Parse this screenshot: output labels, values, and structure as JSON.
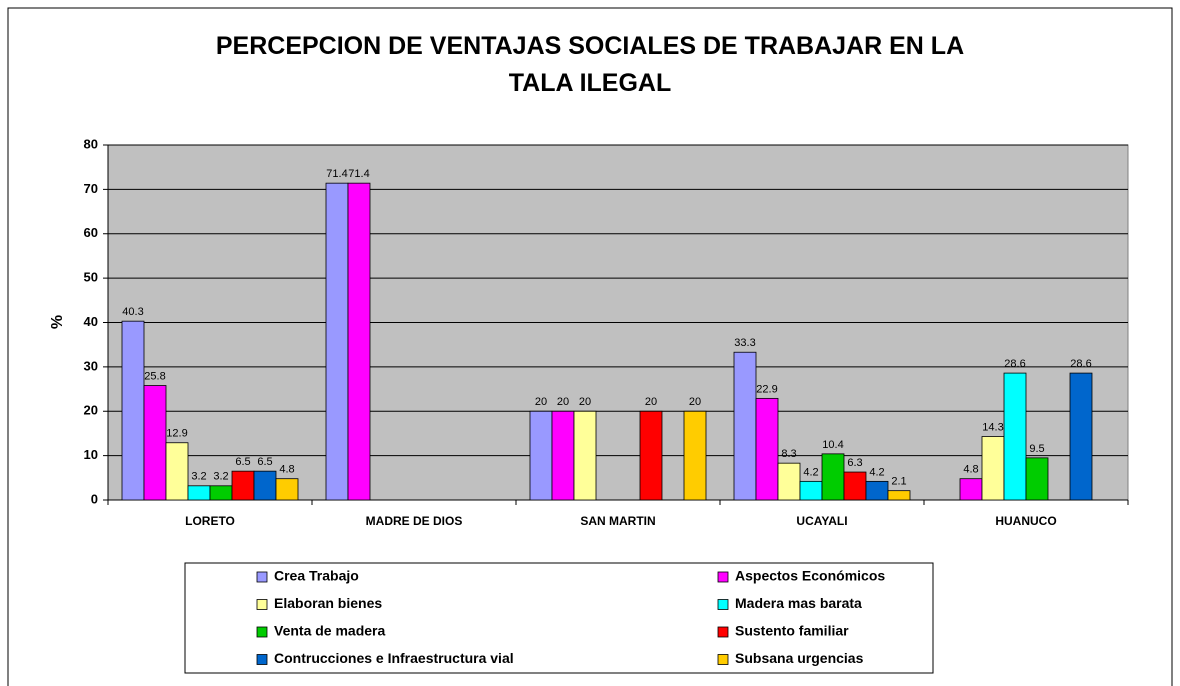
{
  "chart_data": {
    "type": "bar",
    "title": "PERCEPCION DE VENTAJAS SOCIALES DE TRABAJAR EN LA TALA ILEGAL",
    "y_label": "%",
    "categories": [
      "LORETO",
      "MADRE DE DIOS",
      "SAN MARTIN",
      "UCAYALI",
      "HUANUCO"
    ],
    "series": [
      {
        "name": "Crea Trabajo",
        "color": "#9999FF",
        "values": [
          40.3,
          71.4,
          20,
          33.3,
          null
        ]
      },
      {
        "name": "Aspectos Económicos",
        "color": "#FF00FF",
        "values": [
          25.8,
          71.4,
          20,
          22.9,
          4.8
        ]
      },
      {
        "name": "Elaboran bienes",
        "color": "#FFFF99",
        "values": [
          12.9,
          null,
          20,
          8.3,
          14.3
        ]
      },
      {
        "name": "Madera mas barata",
        "color": "#00FFFF",
        "values": [
          3.2,
          null,
          null,
          4.2,
          28.6
        ]
      },
      {
        "name": "Venta de madera",
        "color": "#00CC00",
        "values": [
          3.2,
          null,
          null,
          10.4,
          9.5
        ]
      },
      {
        "name": "Sustento familiar",
        "color": "#FF0000",
        "values": [
          6.5,
          null,
          20,
          6.3,
          null
        ]
      },
      {
        "name": "Contrucciones e Infraestructura vial",
        "color": "#0066CC",
        "values": [
          6.5,
          null,
          null,
          4.2,
          28.6
        ]
      },
      {
        "name": "Subsana urgencias",
        "color": "#FFCC00",
        "values": [
          4.8,
          null,
          20,
          2.1,
          null
        ]
      }
    ],
    "ylim": [
      0,
      80
    ],
    "yticks": [
      0,
      10,
      20,
      30,
      40,
      50,
      60,
      70,
      80
    ],
    "grid": true
  }
}
